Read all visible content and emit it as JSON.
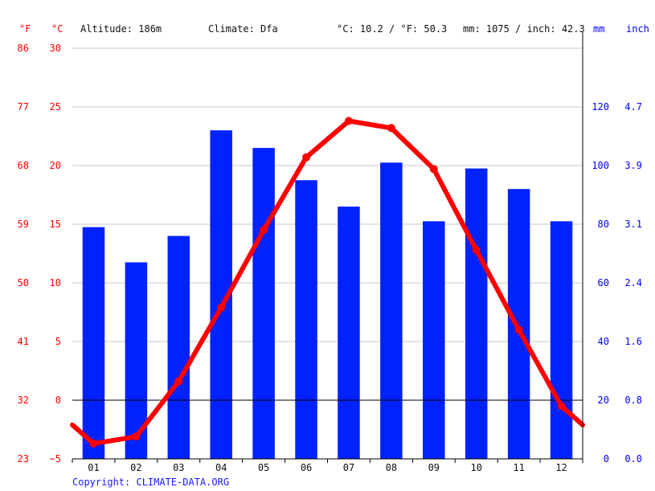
{
  "header": {
    "unit_f": "°F",
    "unit_c": "°C",
    "altitude": "Altitude: 186m",
    "climate": "Climate: Dfa",
    "temp_avg": "°C: 10.2 / °F: 50.3",
    "precip_avg": "mm: 1075 / inch: 42.3",
    "unit_mm": "mm",
    "unit_inch": "inch"
  },
  "axes": {
    "f_ticks": [
      "86",
      "77",
      "68",
      "59",
      "50",
      "41",
      "32",
      "23"
    ],
    "c_ticks": [
      "30",
      "25",
      "20",
      "15",
      "10",
      "5",
      "0",
      "−5"
    ],
    "mm_ticks": [
      "120",
      "100",
      "80",
      "60",
      "40",
      "20",
      "0"
    ],
    "inch_ticks": [
      "4.7",
      "3.9",
      "3.1",
      "2.4",
      "1.6",
      "0.8",
      "0.0"
    ]
  },
  "footer": {
    "copyright": "Copyright: CLIMATE-DATA.ORG"
  },
  "colors": {
    "temperature": "#ff0000",
    "precipitation": "#0022ff",
    "grid": "#c8c8c8",
    "zero_line": "#000000"
  },
  "chart_data": {
    "type": "bar",
    "categories": [
      "01",
      "02",
      "03",
      "04",
      "05",
      "06",
      "07",
      "08",
      "09",
      "10",
      "11",
      "12"
    ],
    "series": [
      {
        "name": "mm",
        "kind": "bar",
        "axis": "right",
        "values": [
          79,
          67,
          76,
          112,
          106,
          95,
          86,
          101,
          81,
          99,
          92,
          81
        ]
      },
      {
        "name": "°C",
        "kind": "line",
        "axis": "left",
        "values": [
          -3.7,
          -3.1,
          1.6,
          7.9,
          14.5,
          20.7,
          23.8,
          23.2,
          19.7,
          12.8,
          6.0,
          -0.5
        ]
      }
    ],
    "y_left": {
      "label": "°C",
      "ylim": [
        -5,
        30
      ],
      "ticks": [
        -5,
        0,
        5,
        10,
        15,
        20,
        25,
        30
      ]
    },
    "y_left_f": {
      "label": "°F",
      "ticks": [
        23,
        32,
        41,
        50,
        59,
        68,
        77,
        86
      ]
    },
    "y_right": {
      "label": "mm",
      "ylim": [
        0,
        140
      ],
      "ticks": [
        0,
        20,
        40,
        60,
        80,
        100,
        120
      ]
    },
    "y_right_inch": {
      "label": "inch",
      "ticks": [
        0.0,
        0.8,
        1.6,
        2.4,
        3.1,
        3.9,
        4.7
      ]
    },
    "grid": true
  }
}
